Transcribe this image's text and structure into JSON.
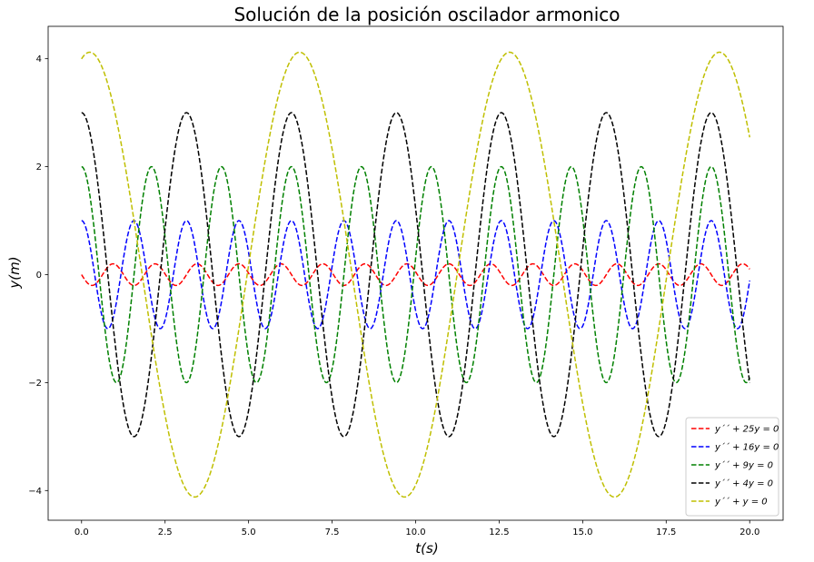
{
  "chart_data": {
    "type": "line",
    "title": "Solución de la posición oscilador armonico",
    "xlabel": "t(s)",
    "ylabel": "y(m)",
    "xlim": [
      -1.0,
      21.0
    ],
    "ylim": [
      -4.55,
      4.6
    ],
    "xticks": [
      0.0,
      2.5,
      5.0,
      7.5,
      10.0,
      12.5,
      15.0,
      17.5,
      20.0
    ],
    "xtick_labels": [
      "0.0",
      "2.5",
      "5.0",
      "7.5",
      "10.0",
      "12.5",
      "15.0",
      "17.5",
      "20.0"
    ],
    "yticks": [
      -4,
      -2,
      0,
      2,
      4
    ],
    "ytick_labels": [
      "−4",
      "−2",
      "0",
      "2",
      "4"
    ],
    "grid": false,
    "legend_position": "lower-right",
    "line_style": "dashed",
    "x_range": [
      0,
      20
    ],
    "series": [
      {
        "name": "y´´ + 25y = 0",
        "color": "#ff0000",
        "amplitude": 0.2,
        "omega": 5,
        "phase": 1.5708
      },
      {
        "name": "y´´ + 16y = 0",
        "color": "#0000ff",
        "amplitude": 1.0,
        "omega": 4,
        "phase": 0
      },
      {
        "name": "y´´ + 9y = 0",
        "color": "#008000",
        "amplitude": 2.0,
        "omega": 3,
        "phase": 0
      },
      {
        "name": "y´´ + 4y = 0",
        "color": "#000000",
        "amplitude": 3.0,
        "omega": 2,
        "phase": 0
      },
      {
        "name": "y´´ + y = 0",
        "color": "#bfbf00",
        "amplitude": 4.12,
        "omega": 1,
        "phase": -0.245
      }
    ]
  }
}
